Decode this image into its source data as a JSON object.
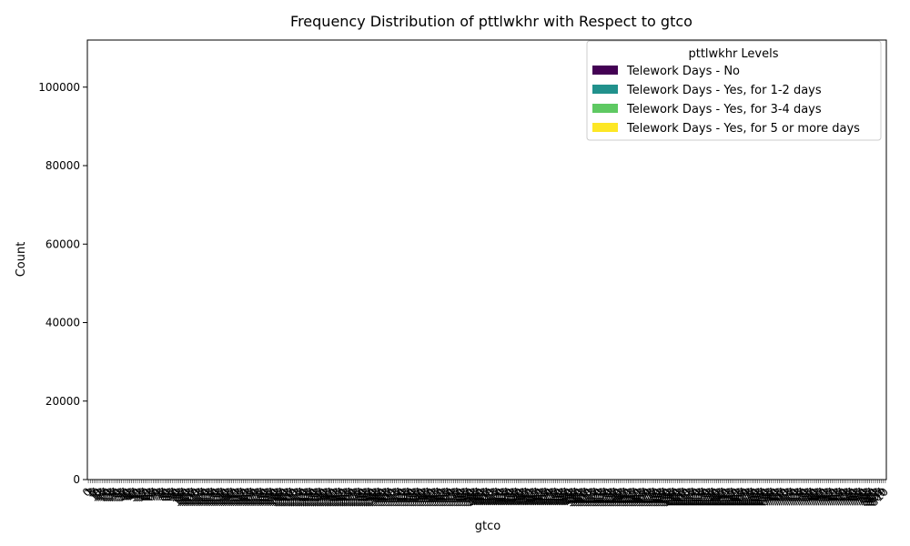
{
  "chart_data": {
    "type": "bar",
    "title": "Frequency Distribution of pttlwkhr with Respect to gtco",
    "xlabel": "gtco",
    "ylabel": "Count",
    "ylim": [
      0,
      112000
    ],
    "yticks": [
      0,
      20000,
      40000,
      60000,
      80000,
      100000
    ],
    "grid": false,
    "legend": {
      "title": "pttlwkhr Levels",
      "position": "top-right"
    },
    "categories": [
      "0",
      "1",
      "3",
      "5",
      "7",
      "9",
      "11",
      "13",
      "15",
      "17",
      "19",
      "21",
      "23",
      "25",
      "27",
      "29",
      "31",
      "33",
      "35",
      "37",
      "39",
      "41",
      "43",
      "45",
      "47",
      "49",
      "51",
      "53",
      "55",
      "57",
      "59",
      "61",
      "63",
      "65",
      "67",
      "69",
      "71",
      "73",
      "75",
      "77",
      "79",
      "81",
      "83",
      "85",
      "87",
      "89",
      "91",
      "93",
      "95",
      "97",
      "99",
      "101",
      "103",
      "105",
      "107",
      "109",
      "111",
      "113",
      "115",
      "117",
      "119",
      "121",
      "123",
      "125",
      "127",
      "129",
      "131",
      "133",
      "135",
      "137",
      "139",
      "141",
      "143",
      "145",
      "147",
      "149",
      "151",
      "153",
      "155",
      "157",
      "159",
      "161",
      "163",
      "165",
      "167",
      "169",
      "171",
      "173",
      "175",
      "177",
      "179",
      "181",
      "183",
      "185",
      "187",
      "189",
      "191",
      "193",
      "195",
      "197",
      "199",
      "201",
      "203",
      "205",
      "207",
      "209",
      "211",
      "213",
      "215",
      "217",
      "219",
      "221",
      "223",
      "225",
      "227",
      "229",
      "231",
      "233",
      "235",
      "237",
      "239",
      "241",
      "243",
      "245",
      "247",
      "249",
      "251",
      "253",
      "255",
      "257",
      "259",
      "261",
      "263",
      "265",
      "267",
      "269",
      "271",
      "273",
      "275",
      "277",
      "279",
      "281",
      "283",
      "285",
      "287",
      "289",
      "291",
      "293",
      "295",
      "297",
      "299",
      "301",
      "303",
      "305",
      "307",
      "309",
      "311",
      "313",
      "315",
      "317",
      "319",
      "321",
      "323",
      "325",
      "327",
      "329",
      "331",
      "333",
      "335",
      "337",
      "339",
      "341",
      "343",
      "345",
      "347",
      "349",
      "351",
      "353",
      "355",
      "357",
      "359",
      "361",
      "363",
      "365",
      "367",
      "369",
      "371",
      "373",
      "375",
      "377",
      "379",
      "381",
      "383",
      "385",
      "387",
      "389",
      "391",
      "393",
      "395",
      "397",
      "399",
      "401",
      "403",
      "405",
      "407",
      "409",
      "411",
      "413",
      "415",
      "417",
      "419",
      "421",
      "423",
      "425",
      "427",
      "429",
      "431",
      "433",
      "435",
      "437",
      "439",
      "441",
      "443",
      "445",
      "447",
      "449",
      "451",
      "453",
      "455",
      "457",
      "459",
      "461",
      "463",
      "465",
      "467",
      "469",
      "471",
      "473",
      "475",
      "477",
      "479",
      "481",
      "483",
      "485",
      "487",
      "489",
      "491",
      "493",
      "495",
      "497",
      "499",
      "501",
      "503",
      "505",
      "507",
      "509",
      "511",
      "513",
      "515",
      "517",
      "519",
      "521",
      "523",
      "525",
      "527",
      "529",
      "531",
      "533",
      "535",
      "537",
      "539",
      "541",
      "543",
      "545",
      "547",
      "549",
      "551",
      "553",
      "555",
      "557",
      "559",
      "561",
      "563",
      "565",
      "567",
      "569",
      "571",
      "573",
      "575",
      "577",
      "579",
      "581",
      "583",
      "585",
      "587",
      "589",
      "591",
      "593",
      "595",
      "597",
      "599",
      "601",
      "603",
      "605",
      "607",
      "609",
      "611",
      "613",
      "615",
      "617",
      "619",
      "621",
      "623",
      "625",
      "627",
      "629",
      "631",
      "633",
      "635",
      "637",
      "639",
      "641",
      "643",
      "645",
      "647",
      "649",
      "651",
      "653",
      "655",
      "657",
      "659",
      "661",
      "663",
      "665",
      "667",
      "669",
      "671",
      "673",
      "675",
      "677",
      "679",
      "681",
      "683",
      "685",
      "687",
      "689",
      "691",
      "693",
      "695",
      "697",
      "699",
      "701",
      "703",
      "705",
      "707",
      "709",
      "711",
      "713",
      "715",
      "717",
      "719",
      "721",
      "723",
      "725",
      "727",
      "729",
      "731",
      "733",
      "735",
      "737",
      "739",
      "741",
      "743",
      "745",
      "747",
      "749",
      "751",
      "753",
      "755",
      "757",
      "759",
      "761",
      "763",
      "765",
      "767",
      "769",
      "771",
      "773",
      "775",
      "777",
      "779",
      "781",
      "783",
      "785",
      "787",
      "789",
      "791",
      "793",
      "795",
      "797",
      "799",
      "801",
      "803",
      "805",
      "807",
      "809",
      "810"
    ],
    "xtick_labels": [
      "0",
      "1",
      "3",
      "5",
      "7",
      "9",
      "11",
      "13",
      "15",
      "17",
      "19",
      "21",
      "23",
      "25",
      "27",
      "29",
      "31",
      "33",
      "35",
      "37",
      "39",
      "41",
      "43",
      "45",
      "47",
      "49",
      "51",
      "53",
      "55",
      "57",
      "59",
      "61",
      "63",
      "65",
      "67",
      "69",
      "71",
      "73",
      "75",
      "77",
      "79",
      "81",
      "83",
      "85",
      "87",
      "89",
      "91",
      "93",
      "95",
      "97",
      "99",
      "101",
      "103",
      "105",
      "107",
      "109",
      "111",
      "113",
      "115",
      "117",
      "119",
      "121",
      "123",
      "125",
      "127",
      "129",
      "131",
      "133",
      "135",
      "137",
      "139",
      "141",
      "143",
      "145",
      "147",
      "149",
      "151",
      "153",
      "155",
      "157",
      "159",
      "161",
      "163",
      "165",
      "167",
      "169",
      "171",
      "173",
      "175",
      "177",
      "179",
      "181",
      "183",
      "185",
      "187",
      "189",
      "191",
      "193",
      "195",
      "197",
      "199",
      "201",
      "203",
      "205",
      "207",
      "209",
      "211",
      "213",
      "215",
      "217",
      "219",
      "221",
      "223",
      "225",
      "227",
      "229",
      "231",
      "233",
      "235",
      "237",
      "239",
      "241",
      "243",
      "245",
      "247",
      "249",
      "251",
      "253",
      "255",
      "257",
      "259",
      "261",
      "263",
      "265",
      "267",
      "269",
      "271",
      "273",
      "275",
      "277",
      "279",
      "281",
      "283",
      "285",
      "287",
      "289",
      "291",
      "293",
      "295",
      "297",
      "299",
      "301",
      "303",
      "305",
      "307",
      "309",
      "311",
      "313",
      "315",
      "317",
      "319",
      "321",
      "323",
      "325",
      "327",
      "329",
      "331",
      "333",
      "335",
      "337",
      "339",
      "341",
      "343",
      "345",
      "347",
      "349",
      "351",
      "353",
      "355",
      "357",
      "359",
      "361",
      "363",
      "365",
      "367",
      "369",
      "371",
      "373",
      "375",
      "377",
      "379",
      "381",
      "383",
      "385",
      "387",
      "389",
      "391",
      "393",
      "395",
      "397",
      "399",
      "401",
      "403",
      "405",
      "407",
      "409",
      "411",
      "413",
      "415",
      "417",
      "419",
      "421",
      "423",
      "425",
      "427",
      "429",
      "431",
      "433",
      "435",
      "437",
      "439",
      "441",
      "443",
      "445",
      "447",
      "449",
      "451",
      "453",
      "455",
      "457",
      "459",
      "461",
      "463",
      "465",
      "467",
      "469",
      "471",
      "473",
      "475",
      "477",
      "479",
      "481",
      "483",
      "485",
      "487",
      "489",
      "491",
      "493",
      "495",
      "497",
      "499",
      "501",
      "503",
      "505",
      "507",
      "509",
      "511",
      "513",
      "515",
      "517",
      "519",
      "521",
      "523",
      "525",
      "527",
      "529",
      "531",
      "533",
      "535",
      "537",
      "539",
      "541",
      "543",
      "545",
      "547",
      "549",
      "551",
      "553",
      "555",
      "557",
      "559",
      "561",
      "563",
      "565",
      "567",
      "569",
      "571",
      "573",
      "575",
      "577",
      "579",
      "581",
      "583",
      "585",
      "587",
      "589",
      "591",
      "593",
      "595",
      "597",
      "599",
      "601",
      "603",
      "605",
      "607",
      "609",
      "611",
      "613",
      "615",
      "617",
      "619",
      "621",
      "623",
      "625",
      "627",
      "629",
      "631",
      "633",
      "635",
      "637",
      "639",
      "641",
      "643",
      "645",
      "647",
      "649",
      "651",
      "653",
      "655",
      "657",
      "659",
      "661",
      "663",
      "665",
      "667",
      "669",
      "671",
      "673",
      "675",
      "677",
      "679",
      "681",
      "683",
      "685",
      "687",
      "689",
      "691",
      "693",
      "695",
      "697",
      "699",
      "701",
      "703",
      "705",
      "707",
      "709",
      "711",
      "713",
      "715",
      "717",
      "719",
      "721",
      "723",
      "725",
      "727",
      "729",
      "731",
      "733",
      "735",
      "737",
      "739",
      "741",
      "743",
      "745",
      "747",
      "749",
      "751",
      "753",
      "755",
      "757",
      "759",
      "761",
      "763",
      "765",
      "767",
      "769",
      "771",
      "773",
      "775",
      "777",
      "779",
      "781",
      "783",
      "785",
      "787",
      "789",
      "791",
      "793",
      "795",
      "797",
      "799",
      "801",
      "803",
      "805",
      "807",
      "809",
      "810"
    ],
    "series": [
      {
        "name": "Telework Days - No",
        "color": "#440154"
      },
      {
        "name": "Telework Days - Yes, for 1-2 days",
        "color": "#21918c"
      },
      {
        "name": "Telework Days - Yes, for 3-4 days",
        "color": "#5ec962"
      },
      {
        "name": "Telework Days - Yes, for 5 or more days",
        "color": "#fde725"
      }
    ]
  }
}
